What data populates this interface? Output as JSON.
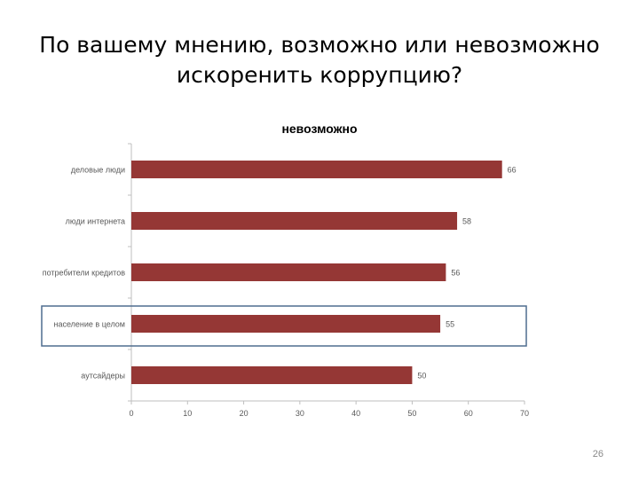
{
  "slide": {
    "title": "По вашему мнению, возможно или невозможно искоренить коррупцию?",
    "page_number": "26"
  },
  "chart_data": {
    "type": "bar",
    "orientation": "horizontal",
    "title": "невозможно",
    "categories": [
      "деловые люди",
      "люди интернета",
      "потребители кредитов",
      "население в целом",
      "аутсайдеры"
    ],
    "values": [
      66,
      58,
      56,
      55,
      50
    ],
    "xlim": [
      0,
      70
    ],
    "xticks": [
      0,
      10,
      20,
      30,
      40,
      50,
      60,
      70
    ],
    "highlighted_category": "население в целом",
    "grid": false,
    "legend": "none",
    "colors": {
      "bar": "#953735",
      "highlight_box": "#4f6d8f",
      "axis": "#bfbfbf",
      "label": "#595959"
    }
  }
}
